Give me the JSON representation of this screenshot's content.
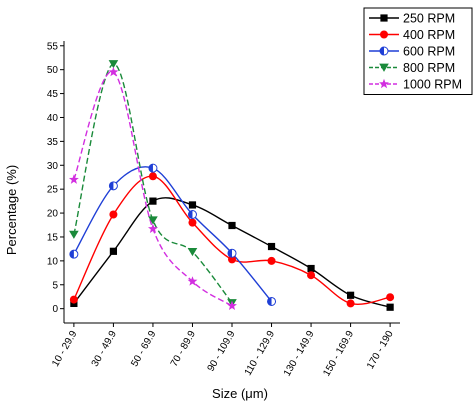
{
  "chart_data": {
    "type": "line",
    "xlabel": "Size (μm)",
    "ylabel": "Percentage (%)",
    "ylim": [
      -3,
      56
    ],
    "yticks": [
      0,
      5,
      10,
      15,
      20,
      25,
      30,
      35,
      40,
      45,
      50,
      55
    ],
    "grid": false,
    "legend_position": "top-right",
    "categories": [
      "10 - 29.9",
      "30 - 49.9",
      "50 - 69.9",
      "70 - 89.9",
      "90 - 109.9",
      "110 - 129.9",
      "130 - 149.9",
      "150 - 169.9",
      "170 - 190"
    ],
    "series": [
      {
        "name": "250 RPM",
        "color": "#000000",
        "marker": "square",
        "dash": "solid",
        "values": [
          1.1,
          12.0,
          22.5,
          21.7,
          17.4,
          13.0,
          8.4,
          2.8,
          0.3
        ]
      },
      {
        "name": "400 RPM",
        "color": "#ff0000",
        "marker": "circle",
        "dash": "solid",
        "values": [
          1.9,
          19.7,
          27.7,
          18.0,
          10.3,
          10.0,
          7.0,
          1.1,
          2.4
        ]
      },
      {
        "name": "600 RPM",
        "color": "#1f3fd6",
        "marker": "half-circle",
        "dash": "solid",
        "values": [
          11.4,
          25.7,
          29.4,
          19.7,
          11.6,
          1.5,
          null,
          null,
          null
        ]
      },
      {
        "name": "800 RPM",
        "color": "#1a8a3a",
        "marker": "triangle-down",
        "dash": "dashed",
        "values": [
          15.5,
          51.2,
          18.5,
          11.9,
          1.2,
          null,
          null,
          null,
          null
        ]
      },
      {
        "name": "1000 RPM",
        "color": "#d22ee0",
        "marker": "star",
        "dash": "dashed",
        "values": [
          27.0,
          49.5,
          16.7,
          5.7,
          0.6,
          null,
          null,
          null,
          null
        ]
      }
    ]
  }
}
